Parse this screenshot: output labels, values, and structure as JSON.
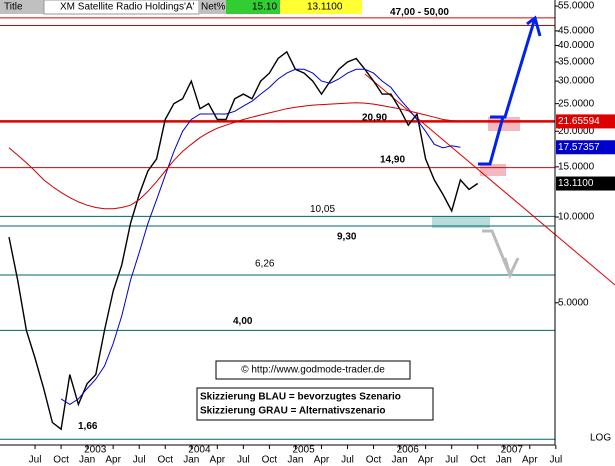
{
  "chart_data": {
    "type": "line",
    "header": {
      "title_label": "Title",
      "title": "XM Satellite Radio Holdings'A'",
      "net_label": "Net%",
      "values": [
        "15.10",
        "13.1100"
      ]
    },
    "log_scale": true,
    "ylim": [
      1.65,
      57.3
    ],
    "yticks": [
      {
        "value": 55,
        "label": "55.0000"
      },
      {
        "value": 45,
        "label": "45.0000"
      },
      {
        "value": 40,
        "label": "40.0000"
      },
      {
        "value": 35,
        "label": "35.0000"
      },
      {
        "value": 30,
        "label": "30.0000"
      },
      {
        "value": 25,
        "label": "25.0000"
      },
      {
        "value": 20,
        "label": "20.0000"
      },
      {
        "value": 15,
        "label": "15.0000"
      },
      {
        "value": 10,
        "label": "10.0000"
      },
      {
        "value": 5,
        "label": "5.0000"
      }
    ],
    "categories": [
      null,
      null,
      null,
      "Jul",
      null,
      null,
      "Oct",
      null,
      null,
      "Jan",
      null,
      null,
      "Apr",
      null,
      null,
      "Jul",
      null,
      null,
      "Oct",
      null,
      null,
      "Jan",
      null,
      null,
      "Apr",
      null,
      null,
      "Jul",
      null,
      null,
      "Oct",
      null,
      null,
      "Jan",
      null,
      null,
      "Apr",
      null,
      null,
      "Jul",
      null,
      null,
      "Oct",
      null,
      null,
      "Jan",
      null,
      null,
      "Apr",
      null,
      null,
      "Jul",
      null,
      null,
      "Oct",
      null,
      null,
      "Jan",
      null,
      null,
      "Apr",
      null,
      null,
      "Jul"
    ],
    "years": [
      "2003",
      "2004",
      "2005",
      "2006",
      "2007"
    ],
    "series": [
      {
        "name": "Price",
        "color": "#000000",
        "values": [
          8.5,
          6,
          4,
          3.2,
          2.5,
          1.9,
          1.8,
          2.8,
          2.2,
          2.6,
          2.8,
          4.0,
          5.5,
          6.8,
          9.5,
          12,
          14.5,
          16,
          22,
          25,
          26,
          30,
          24,
          25,
          22,
          22,
          26,
          27,
          26,
          30,
          32,
          36,
          38,
          33,
          32,
          30,
          27,
          30,
          33,
          35,
          36,
          33,
          30,
          27,
          27,
          24,
          21,
          23,
          16,
          13.5,
          12,
          10.5,
          13.5,
          12.5,
          13.11,
          null,
          null,
          null,
          null,
          null,
          null,
          null,
          null,
          null
        ]
      },
      {
        "name": "MA-blue",
        "color": "#0000cc",
        "values": [
          null,
          null,
          null,
          null,
          null,
          null,
          2.3,
          2.2,
          2.3,
          2.5,
          2.7,
          3.0,
          3.6,
          4.5,
          6,
          7.5,
          9.5,
          11.5,
          14,
          17,
          20,
          22,
          23,
          23,
          23,
          23,
          23.5,
          24.5,
          25.5,
          27,
          28.5,
          30.5,
          32,
          33,
          33,
          32,
          30,
          29.5,
          30.5,
          32,
          33,
          33,
          32,
          30,
          28.5,
          26,
          24,
          22,
          20,
          18,
          17.5,
          17.8,
          17.57357,
          null,
          null,
          null,
          null,
          null,
          null,
          null,
          null,
          null,
          null,
          null
        ]
      },
      {
        "name": "MA-red",
        "color": "#cc0000",
        "values": [
          17.5,
          16.5,
          15.5,
          14.5,
          13.5,
          12.8,
          12.2,
          11.7,
          11.3,
          11,
          10.8,
          10.7,
          10.7,
          10.8,
          11,
          11.5,
          12.3,
          13.3,
          14.5,
          15.8,
          17,
          18,
          19,
          19.8,
          20.5,
          21,
          21.5,
          22,
          22.4,
          22.8,
          23.2,
          23.6,
          24,
          24.3,
          24.5,
          24.7,
          24.8,
          24.9,
          25,
          25.1,
          25.2,
          25.1,
          24.9,
          24.6,
          24.3,
          24,
          23.6,
          23.2,
          22.8,
          22.4,
          22,
          21.8,
          21.65594,
          null,
          null,
          null,
          null,
          null,
          null,
          null,
          null,
          null,
          null,
          null
        ]
      }
    ],
    "levels": [
      {
        "value": 50,
        "color": "#dd0000"
      },
      {
        "value": 47,
        "color": "#dd0000"
      },
      {
        "value": 21.65594,
        "color": "#dd0000"
      },
      {
        "value": 14.9,
        "color": "#dd0000"
      },
      {
        "value": 10.05,
        "color": "#006666"
      },
      {
        "value": 9.3,
        "color": "#006666"
      },
      {
        "value": 6.26,
        "color": "#006666"
      },
      {
        "value": 4.0,
        "color": "#006666"
      },
      {
        "value": 1.66,
        "color": "#006666"
      }
    ],
    "annotations": [
      {
        "text": "47,00 - 50,00",
        "value": 47
      },
      {
        "text": "20,90",
        "value": 20.9
      },
      {
        "text": "14,90",
        "value": 14.9
      },
      {
        "text": "10,05",
        "value": 10.05
      },
      {
        "text": "9,30",
        "value": 9.3
      },
      {
        "text": "6,26",
        "value": 6.26
      },
      {
        "text": "4,00",
        "value": 4.0
      },
      {
        "text": "1,66",
        "value": 1.66
      }
    ],
    "price_labels": [
      {
        "value": 21.65594,
        "label": "21.65594",
        "color": "#dd0000"
      },
      {
        "value": 17.57357,
        "label": "17.57357",
        "color": "#0000cc"
      },
      {
        "value": 13.11,
        "label": "13.1100",
        "color": "#000000"
      }
    ],
    "source": "© http://www.godmode-trader.de",
    "legend_notes": [
      "Skizzierung BLAU = bevorzugtes Szenario",
      "Skizzierung GRAU = Alternativszenario"
    ],
    "scale_label": "LOG"
  }
}
